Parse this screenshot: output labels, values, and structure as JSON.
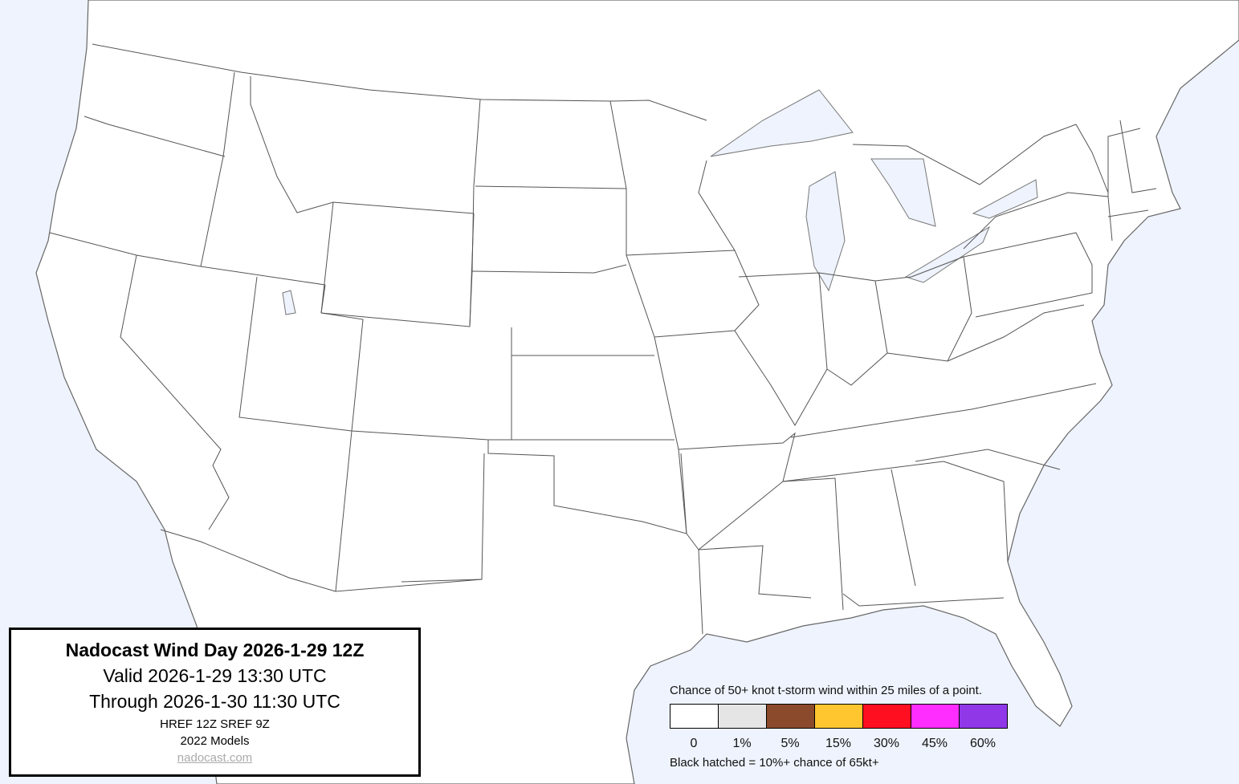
{
  "colors": {
    "ocean": "#eef3fd",
    "land": "#ffffff",
    "borders": "#555555"
  },
  "title_box": {
    "title": "Nadocast Wind Day 2026-1-29 12Z",
    "valid": "Valid 2026-1-29 13:30 UTC",
    "through": "Through 2026-1-30 11:30 UTC",
    "models": "HREF 12Z SREF 9Z",
    "model_version": "2022 Models",
    "link": "nadocast.com"
  },
  "legend": {
    "caption": "Chance of 50+ knot t-storm wind within 25 miles of a point.",
    "items": [
      {
        "label": "0",
        "color": "#ffffff"
      },
      {
        "label": "1%",
        "color": "#e5e5e5"
      },
      {
        "label": "5%",
        "color": "#8b4a2b"
      },
      {
        "label": "15%",
        "color": "#ffc62f"
      },
      {
        "label": "30%",
        "color": "#ff0f1f"
      },
      {
        "label": "45%",
        "color": "#ff2dff"
      },
      {
        "label": "60%",
        "color": "#9038e8"
      }
    ],
    "note": "Black hatched = 10%+ chance of 65kt+"
  }
}
